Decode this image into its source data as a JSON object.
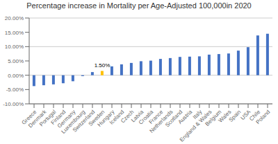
{
  "chart_data": {
    "type": "bar",
    "title": "Percentage increase in Mortality per Age-Adjusted 100,000in 2020",
    "categories": [
      "Greece",
      "Denmark",
      "Portugal",
      "Finland",
      "Germany",
      "Luxembourg",
      "Switzerland",
      "Sweden",
      "Hungary",
      "Iceland",
      "Czech",
      "Latvia",
      "Croatia",
      "France",
      "Netherlands",
      "Scotland",
      "Austria",
      "Italy",
      "England & Wales",
      "Belgium",
      "Wales",
      "Spain",
      "USA",
      "Chile",
      "Poland"
    ],
    "values": [
      -3.8,
      -3.5,
      -3.2,
      -2.8,
      -2.1,
      -0.3,
      1.1,
      1.5,
      3.1,
      3.8,
      4.3,
      4.9,
      5.1,
      5.7,
      6.0,
      6.4,
      6.5,
      6.6,
      7.2,
      7.4,
      7.6,
      8.6,
      9.8,
      13.9,
      14.5
    ],
    "colors": [
      "#4472C4",
      "#4472C4",
      "#4472C4",
      "#4472C4",
      "#4472C4",
      "#4472C4",
      "#4472C4",
      "#FFC000",
      "#4472C4",
      "#4472C4",
      "#4472C4",
      "#4472C4",
      "#4472C4",
      "#4472C4",
      "#4472C4",
      "#4472C4",
      "#4472C4",
      "#4472C4",
      "#4472C4",
      "#4472C4",
      "#4472C4",
      "#4472C4",
      "#4472C4",
      "#4472C4",
      "#4472C4"
    ],
    "ylim": [
      -10,
      20
    ],
    "yticks": [
      {
        "value": -10,
        "label": "-10.00%"
      },
      {
        "value": -5,
        "label": "-5.00%"
      },
      {
        "value": 0,
        "label": "0.00%"
      },
      {
        "value": 5,
        "label": "5.00%"
      },
      {
        "value": 10,
        "label": "10.00%"
      },
      {
        "value": 15,
        "label": "15.00%"
      },
      {
        "value": 20,
        "label": "20.00%"
      }
    ],
    "grid": true,
    "annotations": [
      {
        "text": "1.50%",
        "x": "Sweden",
        "y": 1.5
      }
    ]
  }
}
